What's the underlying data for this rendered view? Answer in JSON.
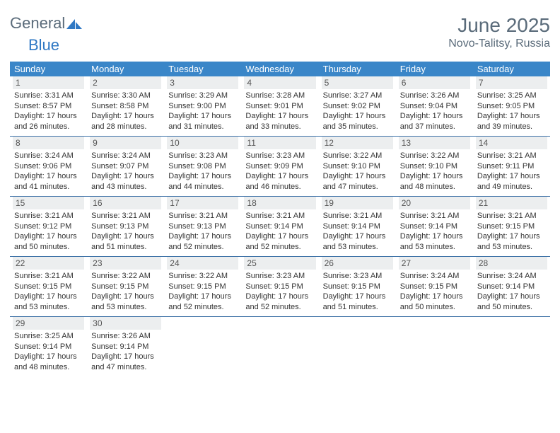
{
  "brand": {
    "part1": "General",
    "part2": "Blue"
  },
  "title": "June 2025",
  "location": "Novo-Talitsy, Russia",
  "colors": {
    "header_bg": "#3a86c8",
    "header_text": "#ffffff",
    "daynum_bg": "#eceeef",
    "row_border": "#3a6fa5",
    "brand_gray": "#5a6b7a",
    "brand_blue": "#2f78c4"
  },
  "weekdays": [
    "Sunday",
    "Monday",
    "Tuesday",
    "Wednesday",
    "Thursday",
    "Friday",
    "Saturday"
  ],
  "weeks": [
    [
      {
        "n": "1",
        "sr": "3:31 AM",
        "ss": "8:57 PM",
        "dl": "17 hours and 26 minutes."
      },
      {
        "n": "2",
        "sr": "3:30 AM",
        "ss": "8:58 PM",
        "dl": "17 hours and 28 minutes."
      },
      {
        "n": "3",
        "sr": "3:29 AM",
        "ss": "9:00 PM",
        "dl": "17 hours and 31 minutes."
      },
      {
        "n": "4",
        "sr": "3:28 AM",
        "ss": "9:01 PM",
        "dl": "17 hours and 33 minutes."
      },
      {
        "n": "5",
        "sr": "3:27 AM",
        "ss": "9:02 PM",
        "dl": "17 hours and 35 minutes."
      },
      {
        "n": "6",
        "sr": "3:26 AM",
        "ss": "9:04 PM",
        "dl": "17 hours and 37 minutes."
      },
      {
        "n": "7",
        "sr": "3:25 AM",
        "ss": "9:05 PM",
        "dl": "17 hours and 39 minutes."
      }
    ],
    [
      {
        "n": "8",
        "sr": "3:24 AM",
        "ss": "9:06 PM",
        "dl": "17 hours and 41 minutes."
      },
      {
        "n": "9",
        "sr": "3:24 AM",
        "ss": "9:07 PM",
        "dl": "17 hours and 43 minutes."
      },
      {
        "n": "10",
        "sr": "3:23 AM",
        "ss": "9:08 PM",
        "dl": "17 hours and 44 minutes."
      },
      {
        "n": "11",
        "sr": "3:23 AM",
        "ss": "9:09 PM",
        "dl": "17 hours and 46 minutes."
      },
      {
        "n": "12",
        "sr": "3:22 AM",
        "ss": "9:10 PM",
        "dl": "17 hours and 47 minutes."
      },
      {
        "n": "13",
        "sr": "3:22 AM",
        "ss": "9:10 PM",
        "dl": "17 hours and 48 minutes."
      },
      {
        "n": "14",
        "sr": "3:21 AM",
        "ss": "9:11 PM",
        "dl": "17 hours and 49 minutes."
      }
    ],
    [
      {
        "n": "15",
        "sr": "3:21 AM",
        "ss": "9:12 PM",
        "dl": "17 hours and 50 minutes."
      },
      {
        "n": "16",
        "sr": "3:21 AM",
        "ss": "9:13 PM",
        "dl": "17 hours and 51 minutes."
      },
      {
        "n": "17",
        "sr": "3:21 AM",
        "ss": "9:13 PM",
        "dl": "17 hours and 52 minutes."
      },
      {
        "n": "18",
        "sr": "3:21 AM",
        "ss": "9:14 PM",
        "dl": "17 hours and 52 minutes."
      },
      {
        "n": "19",
        "sr": "3:21 AM",
        "ss": "9:14 PM",
        "dl": "17 hours and 53 minutes."
      },
      {
        "n": "20",
        "sr": "3:21 AM",
        "ss": "9:14 PM",
        "dl": "17 hours and 53 minutes."
      },
      {
        "n": "21",
        "sr": "3:21 AM",
        "ss": "9:15 PM",
        "dl": "17 hours and 53 minutes."
      }
    ],
    [
      {
        "n": "22",
        "sr": "3:21 AM",
        "ss": "9:15 PM",
        "dl": "17 hours and 53 minutes."
      },
      {
        "n": "23",
        "sr": "3:22 AM",
        "ss": "9:15 PM",
        "dl": "17 hours and 53 minutes."
      },
      {
        "n": "24",
        "sr": "3:22 AM",
        "ss": "9:15 PM",
        "dl": "17 hours and 52 minutes."
      },
      {
        "n": "25",
        "sr": "3:23 AM",
        "ss": "9:15 PM",
        "dl": "17 hours and 52 minutes."
      },
      {
        "n": "26",
        "sr": "3:23 AM",
        "ss": "9:15 PM",
        "dl": "17 hours and 51 minutes."
      },
      {
        "n": "27",
        "sr": "3:24 AM",
        "ss": "9:15 PM",
        "dl": "17 hours and 50 minutes."
      },
      {
        "n": "28",
        "sr": "3:24 AM",
        "ss": "9:14 PM",
        "dl": "17 hours and 50 minutes."
      }
    ],
    [
      {
        "n": "29",
        "sr": "3:25 AM",
        "ss": "9:14 PM",
        "dl": "17 hours and 48 minutes."
      },
      {
        "n": "30",
        "sr": "3:26 AM",
        "ss": "9:14 PM",
        "dl": "17 hours and 47 minutes."
      },
      null,
      null,
      null,
      null,
      null
    ]
  ],
  "labels": {
    "sunrise": "Sunrise:",
    "sunset": "Sunset:",
    "daylight": "Daylight:"
  }
}
